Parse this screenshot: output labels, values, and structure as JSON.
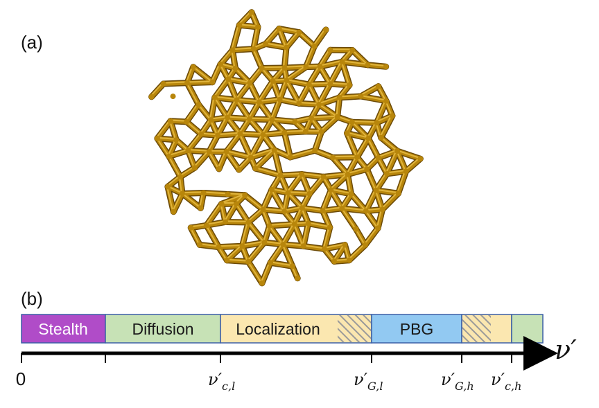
{
  "panels": {
    "a": "(a)",
    "b": "(b)"
  },
  "bar": {
    "segments": [
      {
        "label": "Stealth",
        "fill": "#b04cc8",
        "text_color": "#ffffff"
      },
      {
        "label": "Diffusion",
        "fill": "#c7e2b6",
        "text_color": "#1a1a1a"
      },
      {
        "label": "Localization",
        "fill": "#fbe7b0",
        "text_color": "#1a1a1a"
      },
      {
        "label": "PBG",
        "fill": "#92c9f2",
        "text_color": "#1a1a1a"
      },
      {
        "label": "",
        "fill": "#fbe7b0"
      },
      {
        "label": "",
        "fill": "#c7e2b6"
      }
    ],
    "border_color": "#3b5fa6",
    "hatch_color": "#9a9a9a"
  },
  "axis": {
    "label": "ν′",
    "zero": "0",
    "ticks": [
      {
        "main": "ν′",
        "sub": "c,l"
      },
      {
        "main": "ν′",
        "sub": "G,l"
      },
      {
        "main": "ν′",
        "sub": "G,h"
      },
      {
        "main": "ν′",
        "sub": "c,h"
      }
    ]
  },
  "network_colors": {
    "strut": "#b8860b",
    "highlight": "#e0b43c",
    "shadow": "#6b4a08"
  }
}
